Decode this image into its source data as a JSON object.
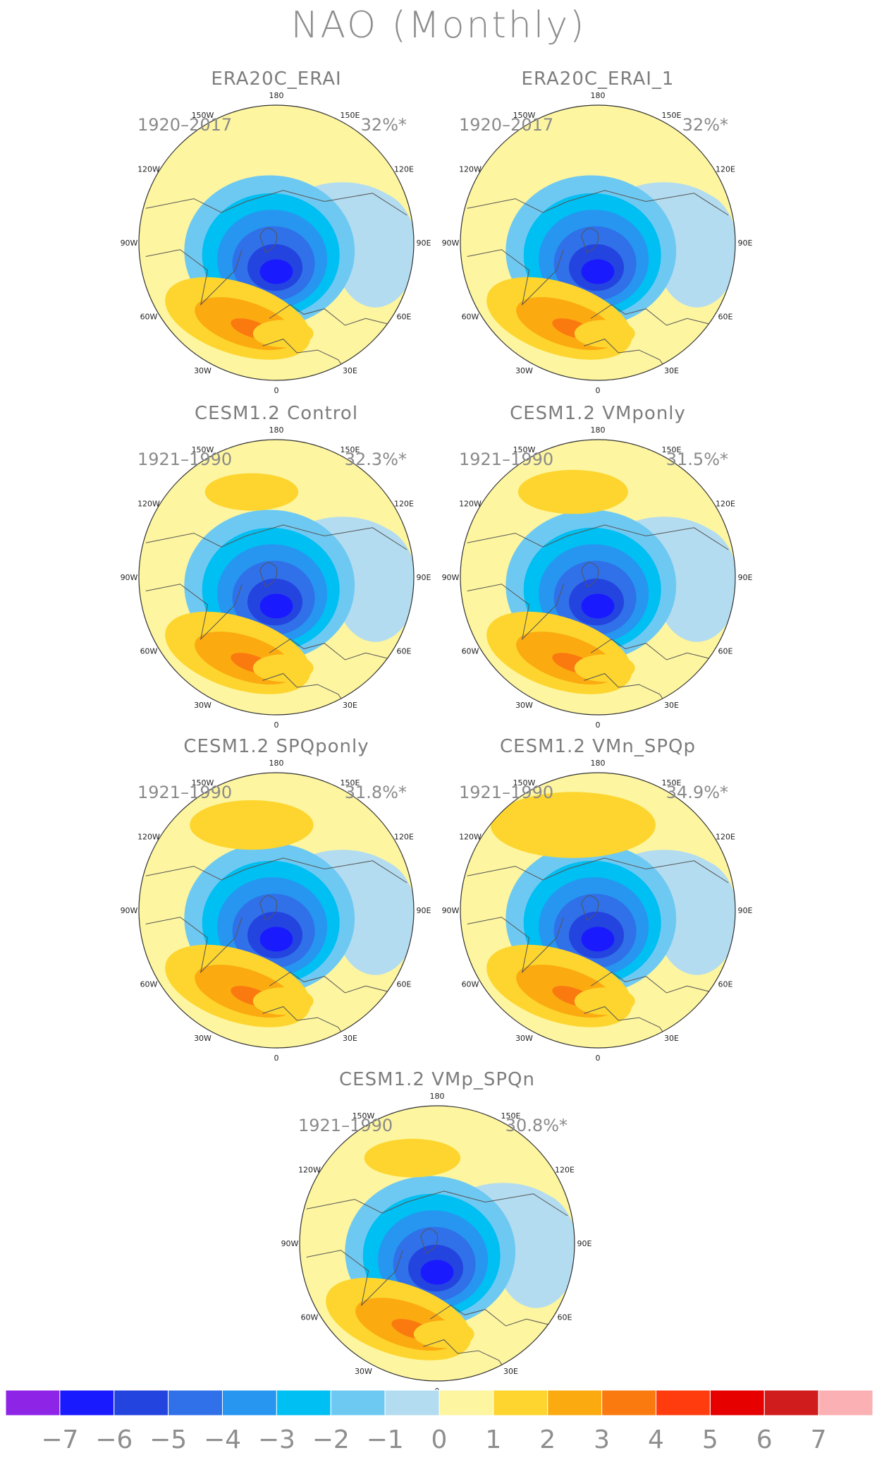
{
  "title": "NAO (Monthly)",
  "chart_data": {
    "type": "polar_contour",
    "title": "NAO (Monthly)",
    "longitude_labels": [
      "180",
      "150E",
      "120E",
      "90E",
      "60E",
      "30E",
      "0",
      "30W",
      "60W",
      "90W",
      "120W",
      "150W"
    ],
    "colorbar": {
      "ticks": [
        "−7",
        "−6",
        "−5",
        "−4",
        "−3",
        "−2",
        "−1",
        "0",
        "1",
        "2",
        "3",
        "4",
        "5",
        "6",
        "7"
      ],
      "colors": [
        "#8e24e6",
        "#1a1aff",
        "#2444e0",
        "#3070e8",
        "#2696f0",
        "#00bff2",
        "#6ec9f2",
        "#b3dcf0",
        "#fdf5a0",
        "#fdd52e",
        "#fbaa10",
        "#fa7a10",
        "#ff3c0e",
        "#e60000",
        "#d01c1c",
        "#fbb0b4"
      ]
    },
    "panels": [
      {
        "title": "ERA20C_ERAI",
        "years": "1920–2017",
        "variance": "32%*",
        "neg": [
          [
            6.5,
            0,
            0.72,
            0.62
          ],
          [
            5.5,
            0,
            0.78,
            0.67
          ],
          [
            4.5,
            0,
            0.84,
            0.72
          ],
          [
            3.5,
            0,
            0.88,
            0.77
          ],
          [
            2.5,
            0,
            0.9,
            0.82
          ]
        ],
        "pos": [
          [
            3.5,
            0,
            0.78,
            0.71
          ],
          [
            2.5,
            0,
            0.87,
            0.78
          ],
          [
            1.5,
            0,
            0.97,
            0.87
          ]
        ],
        "posN": []
      },
      {
        "title": "ERA20C_ERAI_1",
        "years": "1920–2017",
        "variance": "32%*",
        "neg": [
          [
            6.5,
            0,
            0.72,
            0.62
          ],
          [
            5.5,
            0,
            0.78,
            0.67
          ],
          [
            4.5,
            0,
            0.84,
            0.72
          ],
          [
            3.5,
            0,
            0.88,
            0.77
          ],
          [
            2.5,
            0,
            0.9,
            0.82
          ]
        ],
        "pos": [
          [
            3.5,
            0,
            0.78,
            0.71
          ],
          [
            2.5,
            0,
            0.87,
            0.78
          ],
          [
            1.5,
            0,
            0.97,
            0.87
          ]
        ],
        "posN": []
      },
      {
        "title": "CESM1.2 Control",
        "years": "1921–1990",
        "variance": "32.3%*",
        "neg": [
          [
            6.5,
            0,
            0.72,
            0.62
          ],
          [
            5.5,
            0,
            0.78,
            0.67
          ],
          [
            4.5,
            0,
            0.84,
            0.72
          ],
          [
            3.5,
            0,
            0.88,
            0.77
          ],
          [
            2.5,
            0,
            0.92,
            0.82
          ]
        ],
        "pos": [
          [
            3.5,
            0,
            0.78,
            0.71
          ],
          [
            2.5,
            0,
            0.87,
            0.78
          ],
          [
            1.5,
            0,
            0.98,
            0.88
          ]
        ],
        "posN": [
          [
            1.5,
            0.34
          ]
        ]
      },
      {
        "title": "CESM1.2 VMponly",
        "years": "1921–1990",
        "variance": "31.5%*",
        "neg": [
          [
            6.5,
            0,
            0.72,
            0.62
          ],
          [
            5.5,
            0,
            0.78,
            0.67
          ],
          [
            4.5,
            0,
            0.84,
            0.72
          ],
          [
            3.5,
            0,
            0.88,
            0.77
          ],
          [
            2.5,
            0,
            0.92,
            0.82
          ]
        ],
        "pos": [
          [
            2.5,
            0,
            0.87,
            0.78
          ],
          [
            1.5,
            0,
            0.98,
            0.88
          ]
        ],
        "posN": [
          [
            1.5,
            0.4
          ]
        ]
      },
      {
        "title": "CESM1.2 SPQponly",
        "years": "1921–1990",
        "variance": "31.8%*",
        "neg": [
          [
            6.5,
            0,
            0.72,
            0.62
          ],
          [
            5.5,
            0,
            0.78,
            0.67
          ],
          [
            4.5,
            0,
            0.84,
            0.72
          ],
          [
            3.5,
            0,
            0.88,
            0.77
          ],
          [
            2.5,
            0,
            0.92,
            0.82
          ]
        ],
        "pos": [
          [
            3.5,
            0,
            0.78,
            0.71
          ],
          [
            2.5,
            0,
            0.87,
            0.78
          ],
          [
            1.5,
            0,
            0.98,
            0.88
          ]
        ],
        "posN": [
          [
            1.5,
            0.45
          ]
        ]
      },
      {
        "title": "CESM1.2 VMn_SPQp",
        "years": "1921–1990",
        "variance": "34.9%*",
        "neg": [
          [
            6.5,
            0,
            0.72,
            0.62
          ],
          [
            5.5,
            0,
            0.78,
            0.67
          ],
          [
            4.5,
            0,
            0.84,
            0.72
          ],
          [
            3.5,
            0,
            0.88,
            0.77
          ],
          [
            2.5,
            0,
            0.92,
            0.82
          ]
        ],
        "pos": [
          [
            3.5,
            0,
            0.78,
            0.71
          ],
          [
            2.5,
            0,
            0.87,
            0.78
          ],
          [
            1.5,
            0,
            0.98,
            0.88
          ]
        ],
        "posN": [
          [
            1.5,
            0.6
          ]
        ]
      },
      {
        "title": "CESM1.2 VMp_SPQn",
        "years": "1921–1990",
        "variance": "30.8%*",
        "neg": [
          [
            6.5,
            0,
            0.72,
            0.62
          ],
          [
            5.5,
            0,
            0.78,
            0.67
          ],
          [
            4.5,
            0,
            0.84,
            0.72
          ],
          [
            3.5,
            0,
            0.88,
            0.77
          ],
          [
            2.5,
            0,
            0.92,
            0.82
          ]
        ],
        "pos": [
          [
            3.5,
            0,
            0.78,
            0.71
          ],
          [
            2.5,
            0,
            0.87,
            0.78
          ],
          [
            1.5,
            0,
            0.98,
            0.88
          ]
        ],
        "posN": [
          [
            1.5,
            0.35
          ]
        ]
      }
    ]
  }
}
